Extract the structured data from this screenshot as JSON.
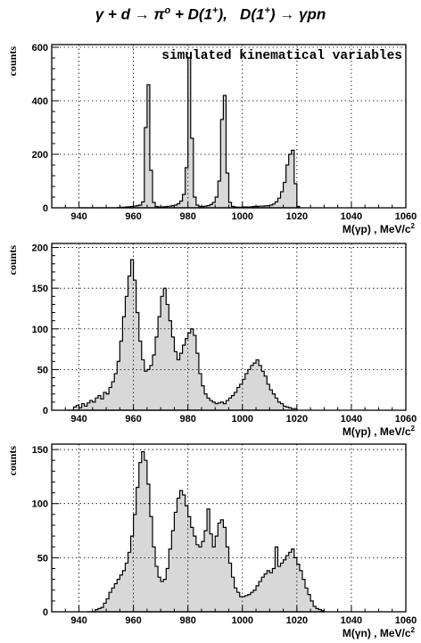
{
  "title": {
    "gamma": "γ",
    "plus1": " + ",
    "d": "d",
    "arrow1": " → ",
    "pi0": "π",
    "pi0_sup": "o",
    "plus2": " + ",
    "D1": "D(1",
    "D1_sup": "+",
    "D1_close": "),",
    "gap": "   ",
    "D2": "D(1",
    "D2_sup": "+",
    "D2_close": ")",
    "arrow2": " → ",
    "products": "γpn"
  },
  "colors": {
    "fill": "#d8d8d8",
    "line": "#000000",
    "grid": "#000000"
  },
  "chart_data": [
    {
      "type": "bar",
      "panel": "top",
      "ylabel": "counts",
      "xlabel": "M(γp) , MeV/c",
      "xlabel_sup": "2",
      "annotation": "simulated kinematical variables",
      "xlim": [
        930,
        1060
      ],
      "ylim": [
        0,
        610
      ],
      "xticks": [
        "940",
        "960",
        "980",
        "1000",
        "1020",
        "1040",
        "1060"
      ],
      "yticks": [
        "0",
        "200",
        "400",
        "600"
      ],
      "grid": true,
      "histogram": {
        "bin_start": 940,
        "bin_width": 1,
        "counts": [
          0,
          0,
          0,
          0,
          0,
          0,
          0,
          0,
          0,
          0,
          0,
          0,
          0,
          0,
          1,
          2,
          2,
          3,
          4,
          5,
          6,
          8,
          10,
          22,
          300,
          460,
          140,
          20,
          5,
          3,
          3,
          4,
          5,
          6,
          8,
          10,
          15,
          25,
          50,
          150,
          560,
          260,
          40,
          10,
          5,
          5,
          6,
          8,
          12,
          20,
          40,
          100,
          330,
          420,
          130,
          20,
          5,
          3,
          2,
          2,
          3,
          3,
          3,
          4,
          5,
          5,
          6,
          6,
          7,
          8,
          10,
          14,
          22,
          36,
          60,
          95,
          160,
          200,
          215,
          90,
          5
        ]
      }
    },
    {
      "type": "bar",
      "panel": "middle",
      "ylabel": "counts",
      "xlabel": "M(γp) , MeV/c",
      "xlabel_sup": "2",
      "xlim": [
        930,
        1060
      ],
      "ylim": [
        0,
        205
      ],
      "xticks": [
        "940",
        "960",
        "980",
        "1000",
        "1020",
        "1040",
        "1060"
      ],
      "yticks": [
        "0",
        "50",
        "100",
        "150",
        "200"
      ],
      "grid": true,
      "histogram": {
        "bin_start": 936,
        "bin_width": 1,
        "counts": [
          0,
          0,
          4,
          6,
          3,
          8,
          5,
          9,
          12,
          10,
          15,
          18,
          14,
          22,
          20,
          28,
          35,
          45,
          60,
          85,
          115,
          140,
          165,
          185,
          160,
          120,
          85,
          62,
          48,
          50,
          55,
          68,
          90,
          115,
          140,
          150,
          130,
          110,
          90,
          72,
          62,
          70,
          80,
          88,
          95,
          100,
          92,
          70,
          45,
          30,
          20,
          15,
          12,
          10,
          8,
          9,
          10,
          8,
          12,
          15,
          18,
          22,
          28,
          32,
          38,
          45,
          50,
          55,
          58,
          62,
          55,
          48,
          42,
          32,
          25,
          20,
          15,
          10,
          8,
          5,
          4,
          3,
          2,
          2
        ]
      }
    },
    {
      "type": "bar",
      "panel": "bottom",
      "ylabel": "counts",
      "xlabel": "M(γn) , MeV/c",
      "xlabel_sup": "2",
      "xlim": [
        930,
        1060
      ],
      "ylim": [
        0,
        155
      ],
      "xticks": [
        "940",
        "960",
        "980",
        "1000",
        "1020",
        "1040",
        "1060"
      ],
      "yticks": [
        "0",
        "50",
        "100",
        "150"
      ],
      "grid": true,
      "histogram": {
        "bin_start": 943,
        "bin_width": 1,
        "counts": [
          0,
          0,
          0,
          2,
          3,
          4,
          8,
          12,
          18,
          22,
          26,
          30,
          34,
          38,
          45,
          55,
          70,
          90,
          115,
          138,
          148,
          140,
          118,
          88,
          60,
          42,
          32,
          28,
          30,
          40,
          58,
          75,
          92,
          105,
          112,
          108,
          98,
          88,
          78,
          70,
          62,
          60,
          65,
          75,
          95,
          72,
          60,
          70,
          82,
          85,
          78,
          60,
          45,
          32,
          22,
          18,
          14,
          14,
          15,
          16,
          18,
          20,
          24,
          28,
          32,
          35,
          38,
          36,
          40,
          60,
          42,
          45,
          48,
          52,
          55,
          58,
          50,
          44,
          38,
          30,
          22,
          16,
          10,
          5,
          3,
          2,
          1
        ]
      }
    }
  ]
}
